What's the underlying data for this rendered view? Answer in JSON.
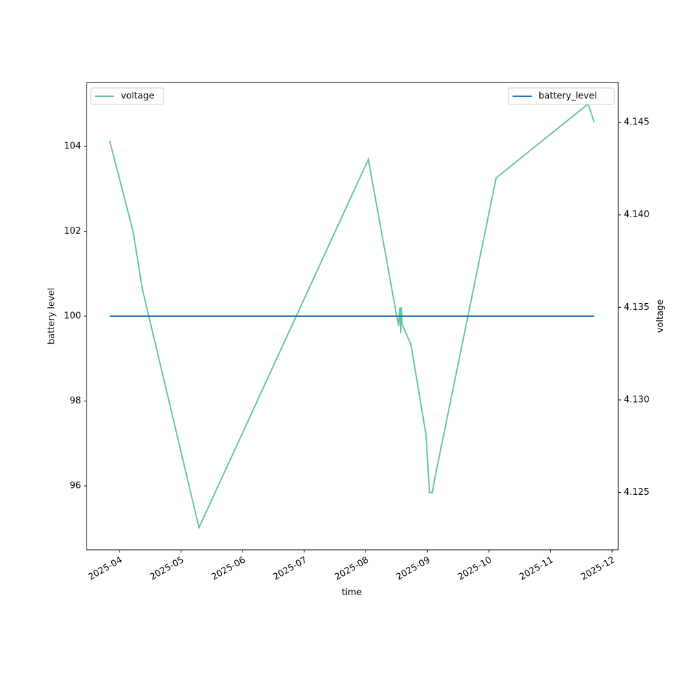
{
  "chart_data": {
    "type": "line",
    "xlabel": "time",
    "ylabel": "battery level",
    "y2label": "voltage",
    "xlim": [
      3.464,
      12.1
    ],
    "xticks": [
      {
        "value": 4,
        "label": "2025-04"
      },
      {
        "value": 5,
        "label": "2025-05"
      },
      {
        "value": 6,
        "label": "2025-06"
      },
      {
        "value": 7,
        "label": "2025-07"
      },
      {
        "value": 8,
        "label": "2025-08"
      },
      {
        "value": 9,
        "label": "2025-09"
      },
      {
        "value": 10,
        "label": "2025-10"
      },
      {
        "value": 11,
        "label": "2025-11"
      },
      {
        "value": 12,
        "label": "2025-12"
      }
    ],
    "ylim": [
      94.494,
      105.506
    ],
    "yticks": [
      96,
      98,
      100,
      102,
      104
    ],
    "y2lim": [
      4.1219,
      4.14716
    ],
    "y2ticks": [
      4.125,
      {
        "value": 4.13,
        "label": "4.130"
      },
      4.135,
      {
        "value": 4.14,
        "label": "4.140"
      },
      4.145
    ],
    "series": [
      {
        "name": "voltage",
        "color": "#66c2a5",
        "axis": "y2",
        "legend": "upper left",
        "x": [
          3.84,
          4.22,
          4.37,
          5.29,
          8.04,
          8.531,
          8.554,
          8.565,
          8.576,
          8.587,
          8.732,
          8.978,
          9.033,
          9.078,
          9.134,
          10.116,
          11.61,
          11.71
        ],
        "values": [
          4.144,
          4.1391,
          4.136,
          4.1231,
          4.143,
          4.134,
          4.135,
          4.1336,
          4.135,
          4.1341,
          4.133,
          4.1281,
          4.125,
          4.125,
          4.126,
          4.142,
          4.146,
          4.145
        ]
      },
      {
        "name": "battery_level",
        "color": "#1f77b4",
        "axis": "y",
        "legend": "upper right",
        "x": [
          3.84,
          11.71
        ],
        "values": [
          100,
          100
        ]
      }
    ]
  }
}
